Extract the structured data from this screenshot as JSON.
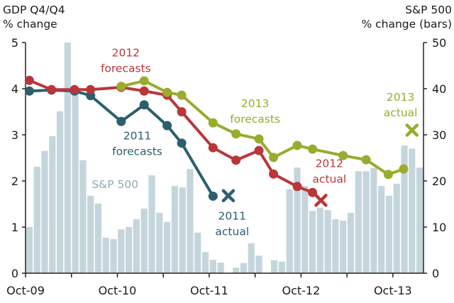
{
  "chart_data": {
    "type": "line",
    "title": "",
    "left_axis": {
      "label_lines": [
        "GDP Q4/Q4",
        "% change"
      ],
      "ylim": [
        0,
        5
      ],
      "ticks": [
        0,
        1,
        2,
        3,
        4,
        5
      ]
    },
    "right_axis": {
      "label_lines": [
        "S&P 500",
        "% change (bars)"
      ],
      "ylim": [
        0,
        50
      ],
      "ticks": [
        0,
        10,
        20,
        30,
        40,
        50
      ]
    },
    "x_axis": {
      "unit": "months since Oct-09",
      "range": [
        0,
        52
      ],
      "tick_months": [
        0,
        6,
        12,
        18,
        24,
        30,
        36,
        42,
        48
      ],
      "tick_labels": [
        {
          "month": 0,
          "label": "Oct-09"
        },
        {
          "month": 12,
          "label": "Oct-10"
        },
        {
          "month": 24,
          "label": "Oct-11"
        },
        {
          "month": 36,
          "label": "Oct-12"
        },
        {
          "month": 48,
          "label": "Oct-13"
        }
      ]
    },
    "bars": {
      "name": "S&P 500",
      "axis": "right",
      "color": "#c5d5dc",
      "values": [
        10.0,
        23.1,
        26.5,
        29.7,
        35.1,
        50.0,
        39.5,
        24.5,
        16.8,
        15.1,
        7.7,
        7.4,
        9.5,
        10.0,
        11.7,
        14.0,
        21.2,
        13.1,
        11.1,
        18.9,
        18.6,
        22.6,
        8.8,
        4.6,
        2.9,
        2.3,
        0,
        1.2,
        2.2,
        6.5,
        3.8,
        0,
        2.8,
        2.5,
        18.2,
        22.9,
        18.9,
        13.5,
        14.2,
        13.7,
        11.7,
        11.4,
        13.1,
        22.1,
        22.1,
        22.8,
        18.9,
        16.8,
        19.4,
        27.7,
        27.0,
        22.9
      ]
    },
    "series": [
      {
        "name": "2011 forecasts",
        "color": "#2c5f6e",
        "points": [
          [
            0.5,
            3.95
          ],
          [
            3.4,
            3.97
          ],
          [
            6.4,
            3.95
          ],
          [
            8.5,
            3.85
          ],
          [
            12.5,
            3.29
          ],
          [
            15.5,
            3.65
          ],
          [
            18.5,
            3.2
          ],
          [
            20.4,
            2.82
          ],
          [
            24.5,
            1.67
          ]
        ],
        "actual": [
          26.5,
          1.68
        ]
      },
      {
        "name": "2012 forecasts",
        "color": "#b8373a",
        "points": [
          [
            0.5,
            4.18
          ],
          [
            3.4,
            3.98
          ],
          [
            6.4,
            3.98
          ],
          [
            8.5,
            3.98
          ],
          [
            12.5,
            4.03
          ],
          [
            15.5,
            3.95
          ],
          [
            18.5,
            3.86
          ],
          [
            20.4,
            3.5
          ],
          [
            24.5,
            2.72
          ],
          [
            27.5,
            2.45
          ],
          [
            30.5,
            2.66
          ],
          [
            32.4,
            2.15
          ],
          [
            35.5,
            1.88
          ],
          [
            37.5,
            1.75
          ]
        ],
        "actual": [
          38.6,
          1.58
        ]
      },
      {
        "name": "2013 forecasts",
        "color": "#9aab2e",
        "points": [
          [
            12.5,
            4.05
          ],
          [
            15.5,
            4.17
          ],
          [
            18.5,
            3.92
          ],
          [
            20.4,
            3.86
          ],
          [
            24.5,
            3.26
          ],
          [
            27.5,
            3.02
          ],
          [
            30.5,
            2.91
          ],
          [
            32.4,
            2.51
          ],
          [
            35.5,
            2.77
          ],
          [
            37.5,
            2.69
          ],
          [
            41.5,
            2.55
          ],
          [
            44.5,
            2.46
          ],
          [
            47.4,
            2.14
          ],
          [
            49.4,
            2.26
          ]
        ],
        "actual": [
          50.5,
          3.1
        ]
      }
    ],
    "annotations": [
      {
        "id": "2012-forecasts",
        "lines": [
          "2012",
          "forecasts"
        ],
        "color": "#b8373a",
        "at": [
          13.1,
          4.7
        ]
      },
      {
        "id": "2011-forecasts",
        "lines": [
          "2011",
          "forecasts"
        ],
        "color": "#2c5f6e",
        "at": [
          14.6,
          2.9
        ]
      },
      {
        "id": "2013-forecasts",
        "lines": [
          "2013",
          "forecasts"
        ],
        "color": "#9aab2e",
        "at": [
          30.0,
          3.6
        ]
      },
      {
        "id": "sp500",
        "lines": [
          "S&P 500"
        ],
        "color": "#8fa9b3",
        "at": [
          11.7,
          1.85
        ]
      },
      {
        "id": "2011-actual",
        "lines": [
          "2011",
          "actual"
        ],
        "color": "#2c5f6e",
        "at": [
          27.0,
          1.16
        ]
      },
      {
        "id": "2012-actual",
        "lines": [
          "2012",
          "actual"
        ],
        "color": "#b8373a",
        "at": [
          39.7,
          2.3
        ]
      },
      {
        "id": "2013-actual",
        "lines": [
          "2013",
          "actual"
        ],
        "color": "#9aab2e",
        "at": [
          49.0,
          3.74
        ]
      }
    ]
  }
}
